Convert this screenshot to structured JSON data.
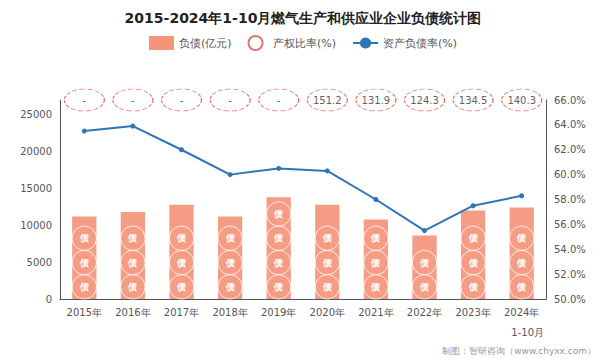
{
  "chart_data": {
    "type": "bar",
    "title": "2015-2024年1-10月燃气生产和供应业企业负债统计图",
    "categories": [
      "2015年",
      "2016年",
      "2017年",
      "2018年",
      "2019年",
      "2020年",
      "2021年",
      "2022年",
      "2023年",
      "2024年"
    ],
    "series": [
      {
        "name": "负债(亿元)",
        "type": "bar",
        "color": "#F4957A",
        "inner_text": "债",
        "values": [
          11200,
          11800,
          12800,
          11200,
          13800,
          12800,
          10800,
          8600,
          12000,
          12400
        ]
      },
      {
        "name": "产权比率(%)",
        "type": "scatter",
        "marker": "circle",
        "line_style": "dashed",
        "color": "#E05050",
        "values": [
          null,
          null,
          null,
          null,
          null,
          151.2,
          131.9,
          124.3,
          134.5,
          140.3
        ],
        "value_labels": [
          "-",
          "-",
          "-",
          "-",
          "-",
          "151.2",
          "131.9",
          "124.3",
          "134.5",
          "140.3"
        ]
      },
      {
        "name": "资产负债率(%)",
        "type": "line",
        "axis": "y2",
        "marker": "circle",
        "color": "#2E75B6",
        "values": [
          63.5,
          63.9,
          62.0,
          60.0,
          60.5,
          60.3,
          58.0,
          55.5,
          57.5,
          58.3
        ]
      }
    ],
    "ylim": [
      0,
      27000
    ],
    "yticks": [
      0,
      5000,
      10000,
      15000,
      20000,
      25000
    ],
    "y2lim": [
      50,
      66
    ],
    "y2ticks": [
      {
        "value": 50,
        "label": "50.0%"
      },
      {
        "value": 52,
        "label": "52.0%"
      },
      {
        "value": 54,
        "label": "54.0%"
      },
      {
        "value": 56,
        "label": "56.0%"
      },
      {
        "value": 58,
        "label": "58.0%"
      },
      {
        "value": 60,
        "label": "60.0%"
      },
      {
        "value": 62,
        "label": "62.0%"
      },
      {
        "value": 64,
        "label": "64.0%"
      },
      {
        "value": 66,
        "label": "66.0%"
      }
    ],
    "annotations": [
      "1-10月",
      "制图：智研咨询（www.chyxx.com）"
    ],
    "legend": "top",
    "grid": false
  }
}
